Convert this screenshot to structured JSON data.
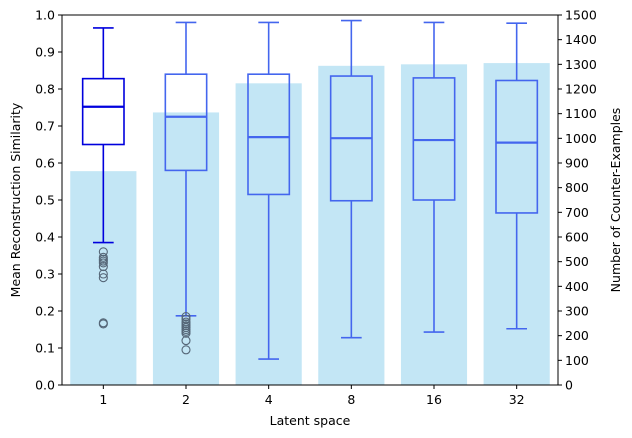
{
  "chart_data": {
    "type": "bar+box",
    "xlabel": "Latent space",
    "ylabel_left": "Mean Reconstruction Similarity",
    "ylabel_right": "Number of Counter-Examples",
    "categories": [
      "1",
      "2",
      "4",
      "8",
      "16",
      "32"
    ],
    "ylim_left": [
      0,
      1.0
    ],
    "ylim_right": [
      0,
      1500
    ],
    "yticks_left": [
      "0.0",
      "0.1",
      "0.2",
      "0.3",
      "0.4",
      "0.5",
      "0.6",
      "0.7",
      "0.8",
      "0.9",
      "1.0"
    ],
    "yticks_right": [
      "0",
      "100",
      "200",
      "300",
      "400",
      "500",
      "600",
      "700",
      "800",
      "900",
      "1000",
      "1100",
      "1200",
      "1300",
      "1400",
      "1500"
    ],
    "bars": {
      "name": "Number of Counter-Examples",
      "axis": "right",
      "color": "#87ceeb",
      "values": [
        867,
        1105,
        1223,
        1294,
        1300,
        1305
      ]
    },
    "boxes": {
      "name": "Mean Reconstruction Similarity",
      "axis": "left",
      "series": [
        {
          "category": "1",
          "whisker_low": 0.385,
          "q1": 0.65,
          "median": 0.752,
          "q3": 0.828,
          "whisker_high": 0.965,
          "outliers": [
            0.36,
            0.345,
            0.34,
            0.335,
            0.33,
            0.32,
            0.3,
            0.29,
            0.168,
            0.165
          ]
        },
        {
          "category": "2",
          "whisker_low": 0.187,
          "q1": 0.58,
          "median": 0.725,
          "q3": 0.84,
          "whisker_high": 0.98,
          "outliers": [
            0.185,
            0.178,
            0.17,
            0.165,
            0.16,
            0.155,
            0.15,
            0.145,
            0.14,
            0.12,
            0.095
          ]
        },
        {
          "category": "4",
          "whisker_low": 0.07,
          "q1": 0.515,
          "median": 0.67,
          "q3": 0.84,
          "whisker_high": 0.98,
          "outliers": []
        },
        {
          "category": "8",
          "whisker_low": 0.128,
          "q1": 0.498,
          "median": 0.667,
          "q3": 0.835,
          "whisker_high": 0.985,
          "outliers": []
        },
        {
          "category": "16",
          "whisker_low": 0.143,
          "q1": 0.5,
          "median": 0.662,
          "q3": 0.83,
          "whisker_high": 0.98,
          "outliers": []
        },
        {
          "category": "32",
          "whisker_low": 0.152,
          "q1": 0.465,
          "median": 0.655,
          "q3": 0.823,
          "whisker_high": 0.978,
          "outliers": []
        }
      ]
    },
    "colors": {
      "box_strong": "#0000dd",
      "box_light": "#4466ee",
      "outlier_edge": "#556677",
      "axis": "#000000"
    }
  }
}
